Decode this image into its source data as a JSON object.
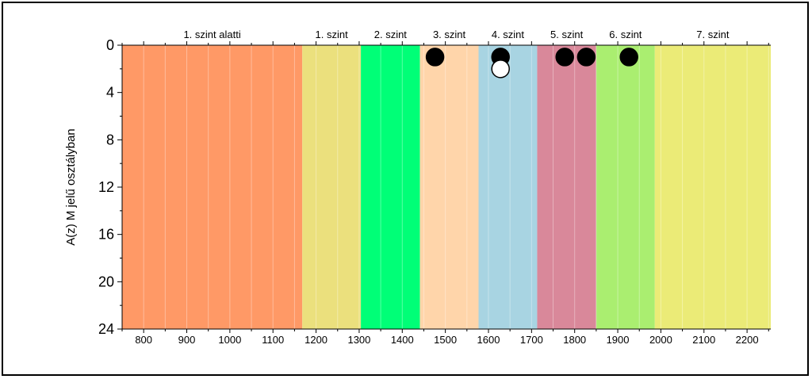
{
  "chart_data": {
    "type": "scatter",
    "title": "",
    "xlabel": "",
    "ylabel": "A(z) M jelű osztályban",
    "xlim": [
      750,
      2255
    ],
    "ylim": [
      0,
      24
    ],
    "y_inverted": true,
    "grid": true,
    "x_ticks": [
      800,
      900,
      1000,
      1100,
      1200,
      1300,
      1400,
      1500,
      1600,
      1700,
      1800,
      1900,
      2000,
      2100,
      2200
    ],
    "y_ticks": [
      0,
      4,
      8,
      12,
      16,
      20,
      24
    ],
    "bands": [
      {
        "label": "1. szint alatti",
        "from": 750,
        "to": 1168,
        "color": "#FF9966"
      },
      {
        "label": "1. szint",
        "from": 1168,
        "to": 1304,
        "color": "#EBE07D"
      },
      {
        "label": "2. szint",
        "from": 1304,
        "to": 1441,
        "color": "#00FF77"
      },
      {
        "label": "3. szint",
        "from": 1441,
        "to": 1577,
        "color": "#FFD5AA"
      },
      {
        "label": "4. szint",
        "from": 1577,
        "to": 1713,
        "color": "#A8D4E2"
      },
      {
        "label": "5. szint",
        "from": 1713,
        "to": 1850,
        "color": "#D9889A"
      },
      {
        "label": "6. szint",
        "from": 1850,
        "to": 1986,
        "color": "#AAEE70"
      },
      {
        "label": "7. szint",
        "from": 1986,
        "to": 2255,
        "color": "#EBEB77"
      }
    ],
    "series": [
      {
        "marker": "filled",
        "color": "#000000",
        "points": [
          [
            1476,
            1
          ],
          [
            1628,
            1
          ],
          [
            1777,
            1
          ],
          [
            1827,
            1
          ],
          [
            1926,
            1
          ]
        ]
      },
      {
        "marker": "open",
        "color": "#ffffff",
        "points": [
          [
            1628,
            2
          ]
        ]
      }
    ]
  }
}
